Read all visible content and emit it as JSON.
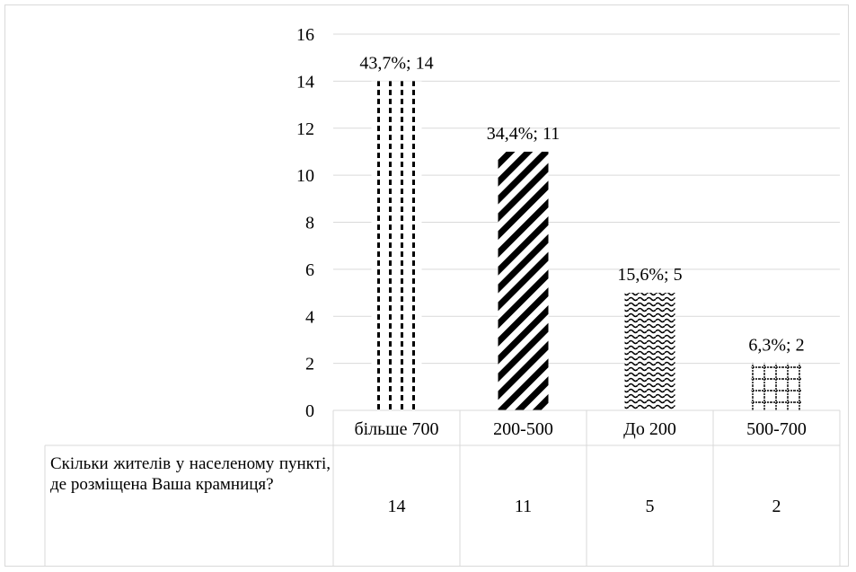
{
  "chart_data": {
    "type": "bar",
    "categories": [
      "більше 700",
      "200-500",
      "До 200",
      "500-700"
    ],
    "values": [
      14,
      11,
      5,
      2
    ],
    "data_labels": [
      "43,7%; 14",
      "34,4%; 11",
      "15,6%; 5",
      "6,3%; 2"
    ],
    "patterns": [
      "dashed-vertical",
      "diagonal",
      "wave",
      "grid"
    ],
    "ylim": [
      0,
      16
    ],
    "yticks": [
      "0",
      "2",
      "4",
      "6",
      "8",
      "10",
      "12",
      "14",
      "16"
    ],
    "grid": true,
    "data_table": {
      "row_label": "Скільки жителів у населеному пункті, де розміщена Ваша крамниця?",
      "values": [
        "14",
        "11",
        "5",
        "2"
      ]
    }
  }
}
